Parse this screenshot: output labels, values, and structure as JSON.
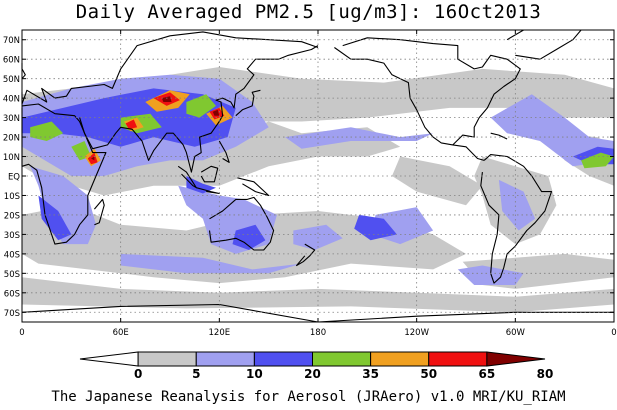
{
  "title": "Daily Averaged PM2.5 [ug/m3]: 16Oct2013",
  "footer": "The Japanese Reanalysis for Aerosol (JRAero) v1.0 MRI/KU_RIAM",
  "map": {
    "lon_range": [
      0,
      360
    ],
    "lat_range": [
      -75,
      75
    ],
    "grid_style": "dotted",
    "lat_ticks": [
      "70N",
      "60N",
      "50N",
      "40N",
      "30N",
      "20N",
      "10N",
      "EQ",
      "10S",
      "20S",
      "30S",
      "40S",
      "50S",
      "60S",
      "70S"
    ],
    "lon_ticks": [
      "0",
      "60E",
      "120E",
      "180",
      "120W",
      "60W",
      "0"
    ]
  },
  "colorbar": {
    "levels": [
      "0",
      "5",
      "10",
      "20",
      "35",
      "50",
      "65",
      "80"
    ],
    "colors": [
      "#ffffff",
      "#c8c8c8",
      "#a0a0f0",
      "#5050f0",
      "#80c830",
      "#f0a020",
      "#f01010",
      "#800000"
    ]
  }
}
